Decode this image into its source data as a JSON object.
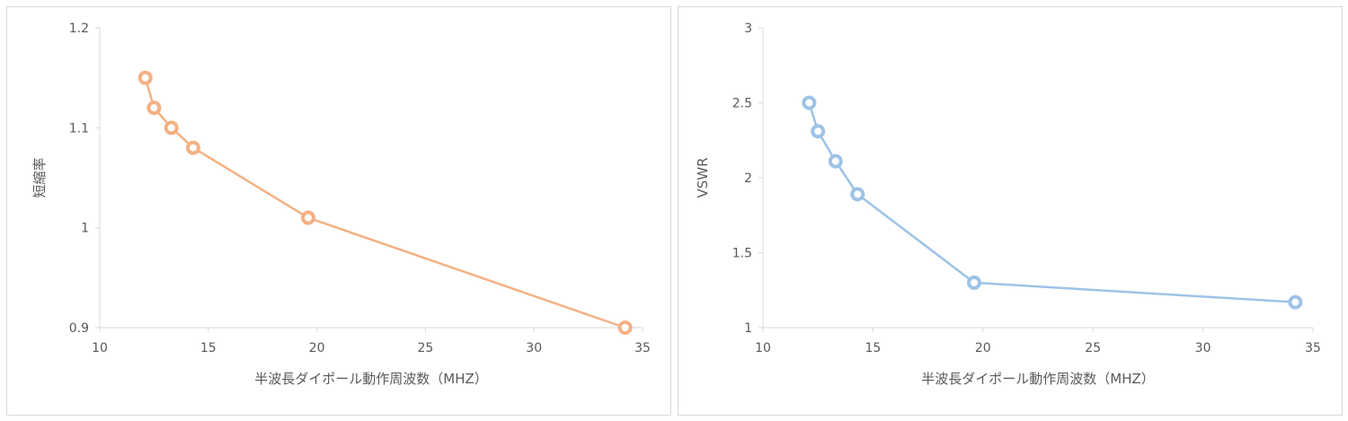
{
  "chart_data": [
    {
      "type": "line",
      "xlabel": "半波長ダイポール動作周波数（MHZ）",
      "ylabel": "短縮率",
      "xlim": [
        10,
        35
      ],
      "ylim": [
        0.9,
        1.2
      ],
      "x_ticks": [
        "10",
        "15",
        "20",
        "25",
        "30",
        "35"
      ],
      "y_ticks": [
        "0.9",
        "1",
        "1.1",
        "1.2"
      ],
      "color": "#F4B183",
      "series": [
        {
          "x": [
            12.1,
            12.5,
            13.3,
            14.3,
            19.6,
            34.2
          ],
          "values": [
            1.15,
            1.12,
            1.1,
            1.08,
            1.01,
            0.9
          ]
        }
      ]
    },
    {
      "type": "line",
      "xlabel": "半波長ダイポール動作周波数（MHZ）",
      "ylabel": "VSWR",
      "xlim": [
        10,
        35
      ],
      "ylim": [
        1,
        3
      ],
      "x_ticks": [
        "10",
        "15",
        "20",
        "25",
        "30",
        "35"
      ],
      "y_ticks": [
        "1",
        "1.5",
        "2",
        "2.5",
        "3"
      ],
      "color": "#9DC3E6",
      "series": [
        {
          "x": [
            12.1,
            12.5,
            13.3,
            14.3,
            19.6,
            34.2
          ],
          "values": [
            2.5,
            2.31,
            2.11,
            1.89,
            1.3,
            1.17
          ]
        }
      ]
    }
  ]
}
